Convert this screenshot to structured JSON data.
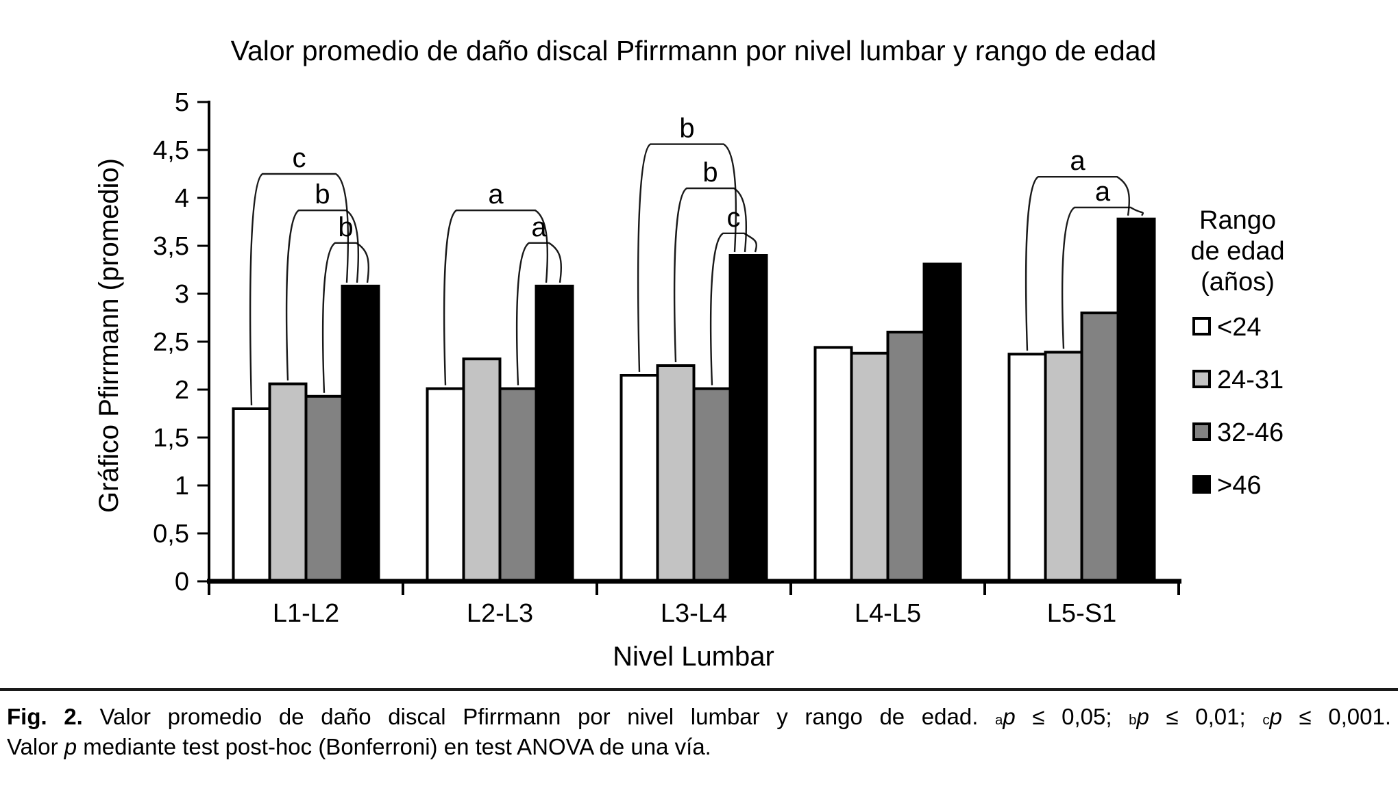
{
  "chart_data": {
    "type": "bar",
    "title": "Valor promedio de daño discal Pfirrmann por nivel lumbar y rango de edad",
    "xlabel": "Nivel Lumbar",
    "ylabel": "Gráfico Pfirrmann (promedio)",
    "ylim": [
      0,
      5
    ],
    "ytick_step": 0.5,
    "ytick_labels": [
      "0",
      "0,5",
      "1",
      "1,5",
      "2",
      "2,5",
      "3",
      "3,5",
      "4",
      "4,5",
      "5"
    ],
    "grid": false,
    "legend_position": "right",
    "categories": [
      "L1-L2",
      "L2-L3",
      "L3-L4",
      "L4-L5",
      "L5-S1"
    ],
    "series": [
      {
        "name": "<24",
        "color": "#ffffff",
        "values": [
          1.8,
          2.01,
          2.15,
          2.44,
          2.37
        ]
      },
      {
        "name": "24-31",
        "color": "#c3c3c3",
        "values": [
          2.06,
          2.32,
          2.25,
          2.38,
          2.39
        ]
      },
      {
        "name": "32-46",
        "color": "#828282",
        "values": [
          1.93,
          2.01,
          2.01,
          2.6,
          2.8
        ]
      },
      {
        "name": ">46",
        "color": "#000000",
        "values": [
          3.08,
          3.08,
          3.4,
          3.31,
          3.78
        ]
      }
    ],
    "legend": {
      "title_lines": [
        "Rango",
        "de edad",
        "(años)"
      ],
      "entries": [
        "<24",
        "24-31",
        "32-46",
        ">46"
      ]
    },
    "significance_brackets": [
      {
        "group": "L1-L2",
        "from": "<24",
        "to": ">46",
        "label": "c",
        "height": 4.25
      },
      {
        "group": "L1-L2",
        "from": "24-31",
        "to": ">46",
        "label": "b",
        "height": 3.87
      },
      {
        "group": "L1-L2",
        "from": "32-46",
        "to": ">46",
        "label": "b",
        "height": 3.53
      },
      {
        "group": "L2-L3",
        "from": "<24",
        "to": ">46",
        "label": "a",
        "height": 3.87
      },
      {
        "group": "L2-L3",
        "from": "32-46",
        "to": ">46",
        "label": "a",
        "height": 3.53
      },
      {
        "group": "L3-L4",
        "from": "<24",
        "to": ">46",
        "label": "b",
        "height": 4.56
      },
      {
        "group": "L3-L4",
        "from": "24-31",
        "to": ">46",
        "label": "b",
        "height": 4.1
      },
      {
        "group": "L3-L4",
        "from": "32-46",
        "to": ">46",
        "label": "c",
        "height": 3.63
      },
      {
        "group": "L5-S1",
        "from": "<24",
        "to": ">46",
        "label": "a",
        "height": 4.22
      },
      {
        "group": "L5-S1",
        "from": "24-31",
        "to": ">46",
        "label": "a",
        "height": 3.9
      }
    ]
  },
  "caption": {
    "fig_label": "Fig. 2.",
    "text_after_fig": " Valor promedio de daño discal Pfirrmann por nivel lumbar y rango de edad. ",
    "significance": [
      {
        "sup": "a",
        "var": "p",
        "cond": " ≤ 0,05; "
      },
      {
        "sup": "b",
        "var": "p",
        "cond": " ≤ 0,01; "
      },
      {
        "sup": "c",
        "var": "p",
        "cond": " ≤ 0,001."
      }
    ],
    "line2_pre": "Valor ",
    "line2_var": "p",
    "line2_post": " mediante test post-hoc (Bonferroni) en test ANOVA de una vía."
  }
}
